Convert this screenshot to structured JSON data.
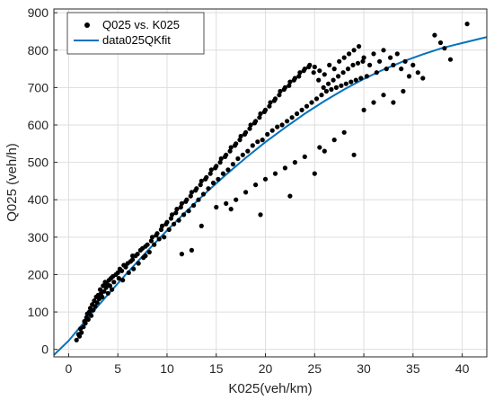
{
  "chart_data": {
    "type": "scatter",
    "xlabel": "K025(veh/km)",
    "ylabel": "Q025 (veh/h)",
    "xlim": [
      -1.5,
      42.5
    ],
    "ylim": [
      -20,
      910
    ],
    "x_ticks": [
      0,
      5,
      10,
      15,
      20,
      25,
      30,
      35,
      40
    ],
    "y_ticks": [
      0,
      100,
      200,
      300,
      400,
      500,
      600,
      700,
      800,
      900
    ],
    "grid": true,
    "legend_position": "top-left",
    "colors": {
      "points": "#000000",
      "fit": "#0072bd",
      "grid": "#dedede",
      "axis": "#262626"
    },
    "series": [
      {
        "name": "Q025 vs. K025",
        "kind": "scatter",
        "points": [
          [
            0.8,
            25
          ],
          [
            1.0,
            40
          ],
          [
            1.1,
            35
          ],
          [
            1.2,
            55
          ],
          [
            1.3,
            45
          ],
          [
            1.5,
            60
          ],
          [
            1.6,
            75
          ],
          [
            1.7,
            70
          ],
          [
            1.8,
            85
          ],
          [
            1.9,
            95
          ],
          [
            2.0,
            80
          ],
          [
            2.1,
            100
          ],
          [
            2.2,
            110
          ],
          [
            2.3,
            90
          ],
          [
            2.4,
            120
          ],
          [
            2.5,
            105
          ],
          [
            2.6,
            130
          ],
          [
            2.7,
            115
          ],
          [
            2.8,
            140
          ],
          [
            2.9,
            125
          ],
          [
            3.0,
            145
          ],
          [
            3.1,
            135
          ],
          [
            3.2,
            160
          ],
          [
            3.3,
            150
          ],
          [
            3.4,
            140
          ],
          [
            3.5,
            170
          ],
          [
            3.6,
            155
          ],
          [
            3.7,
            180
          ],
          [
            3.8,
            165
          ],
          [
            3.9,
            175
          ],
          [
            4.0,
            150
          ],
          [
            4.1,
            185
          ],
          [
            4.2,
            170
          ],
          [
            4.3,
            190
          ],
          [
            4.4,
            160
          ],
          [
            4.5,
            195
          ],
          [
            4.6,
            180
          ],
          [
            4.8,
            200
          ],
          [
            5.0,
            205
          ],
          [
            5.1,
            190
          ],
          [
            5.2,
            215
          ],
          [
            5.4,
            210
          ],
          [
            5.5,
            185
          ],
          [
            5.6,
            225
          ],
          [
            5.8,
            220
          ],
          [
            6.0,
            230
          ],
          [
            6.1,
            205
          ],
          [
            6.3,
            235
          ],
          [
            6.5,
            240
          ],
          [
            6.6,
            215
          ],
          [
            6.8,
            250
          ],
          [
            7.0,
            255
          ],
          [
            7.1,
            230
          ],
          [
            7.3,
            265
          ],
          [
            7.5,
            270
          ],
          [
            7.6,
            245
          ],
          [
            7.8,
            275
          ],
          [
            8.0,
            280
          ],
          [
            8.2,
            260
          ],
          [
            8.4,
            290
          ],
          [
            8.5,
            300
          ],
          [
            8.7,
            280
          ],
          [
            8.9,
            305
          ],
          [
            9.0,
            310
          ],
          [
            9.2,
            295
          ],
          [
            9.4,
            320
          ],
          [
            9.5,
            330
          ],
          [
            9.7,
            300
          ],
          [
            9.9,
            335
          ],
          [
            10.0,
            340
          ],
          [
            10.2,
            320
          ],
          [
            10.4,
            350
          ],
          [
            10.5,
            360
          ],
          [
            10.7,
            335
          ],
          [
            10.9,
            365
          ],
          [
            11.0,
            375
          ],
          [
            11.2,
            345
          ],
          [
            11.4,
            380
          ],
          [
            11.5,
            390
          ],
          [
            11.7,
            360
          ],
          [
            11.9,
            395
          ],
          [
            12.0,
            400
          ],
          [
            12.2,
            370
          ],
          [
            12.4,
            410
          ],
          [
            12.5,
            420
          ],
          [
            12.7,
            385
          ],
          [
            12.9,
            425
          ],
          [
            13.0,
            430
          ],
          [
            13.2,
            400
          ],
          [
            13.4,
            440
          ],
          [
            13.5,
            450
          ],
          [
            13.7,
            415
          ],
          [
            13.9,
            455
          ],
          [
            14.0,
            460
          ],
          [
            14.2,
            430
          ],
          [
            14.4,
            470
          ],
          [
            14.5,
            480
          ],
          [
            14.7,
            445
          ],
          [
            14.9,
            485
          ],
          [
            15.0,
            490
          ],
          [
            15.2,
            455
          ],
          [
            15.4,
            500
          ],
          [
            15.5,
            510
          ],
          [
            15.7,
            470
          ],
          [
            15.9,
            515
          ],
          [
            16.0,
            520
          ],
          [
            16.2,
            480
          ],
          [
            16.4,
            530
          ],
          [
            16.5,
            540
          ],
          [
            16.7,
            495
          ],
          [
            16.9,
            545
          ],
          [
            17.0,
            550
          ],
          [
            17.2,
            510
          ],
          [
            17.4,
            560
          ],
          [
            17.5,
            570
          ],
          [
            17.7,
            520
          ],
          [
            17.9,
            575
          ],
          [
            18.0,
            580
          ],
          [
            18.2,
            530
          ],
          [
            18.4,
            590
          ],
          [
            18.5,
            600
          ],
          [
            18.7,
            545
          ],
          [
            18.9,
            605
          ],
          [
            19.0,
            610
          ],
          [
            19.2,
            555
          ],
          [
            19.4,
            620
          ],
          [
            19.5,
            630
          ],
          [
            19.7,
            560
          ],
          [
            19.9,
            635
          ],
          [
            20.0,
            640
          ],
          [
            20.2,
            575
          ],
          [
            20.4,
            650
          ],
          [
            20.5,
            660
          ],
          [
            20.7,
            585
          ],
          [
            20.9,
            665
          ],
          [
            21.0,
            670
          ],
          [
            21.2,
            595
          ],
          [
            21.4,
            680
          ],
          [
            21.5,
            690
          ],
          [
            21.7,
            600
          ],
          [
            21.9,
            695
          ],
          [
            22.0,
            700
          ],
          [
            22.2,
            610
          ],
          [
            22.4,
            705
          ],
          [
            22.5,
            715
          ],
          [
            22.7,
            620
          ],
          [
            22.9,
            720
          ],
          [
            23.0,
            725
          ],
          [
            23.2,
            630
          ],
          [
            23.4,
            730
          ],
          [
            23.5,
            740
          ],
          [
            23.7,
            640
          ],
          [
            23.9,
            745
          ],
          [
            24.0,
            750
          ],
          [
            24.2,
            650
          ],
          [
            24.4,
            755
          ],
          [
            24.5,
            760
          ],
          [
            24.7,
            660
          ],
          [
            24.9,
            740
          ],
          [
            25.0,
            755
          ],
          [
            25.2,
            670
          ],
          [
            25.4,
            720
          ],
          [
            25.5,
            745
          ],
          [
            25.7,
            680
          ],
          [
            25.9,
            700
          ],
          [
            26.0,
            735
          ],
          [
            26.2,
            690
          ],
          [
            26.4,
            710
          ],
          [
            26.5,
            760
          ],
          [
            26.7,
            695
          ],
          [
            26.9,
            720
          ],
          [
            27.0,
            750
          ],
          [
            27.2,
            700
          ],
          [
            27.4,
            730
          ],
          [
            27.5,
            770
          ],
          [
            27.7,
            705
          ],
          [
            27.9,
            740
          ],
          [
            28.0,
            780
          ],
          [
            28.2,
            710
          ],
          [
            28.4,
            750
          ],
          [
            28.5,
            790
          ],
          [
            28.7,
            715
          ],
          [
            28.9,
            760
          ],
          [
            29.0,
            800
          ],
          [
            29.2,
            720
          ],
          [
            29.4,
            765
          ],
          [
            29.5,
            810
          ],
          [
            29.7,
            725
          ],
          [
            29.9,
            770
          ],
          [
            30.0,
            780
          ],
          [
            30.3,
            730
          ],
          [
            30.6,
            760
          ],
          [
            31.0,
            790
          ],
          [
            31.3,
            740
          ],
          [
            31.6,
            770
          ],
          [
            32.0,
            800
          ],
          [
            32.3,
            750
          ],
          [
            32.7,
            780
          ],
          [
            33.0,
            760
          ],
          [
            33.4,
            790
          ],
          [
            33.8,
            750
          ],
          [
            34.2,
            770
          ],
          [
            34.6,
            730
          ],
          [
            35.0,
            760
          ],
          [
            35.5,
            740
          ],
          [
            36.0,
            725
          ],
          [
            37.2,
            840
          ],
          [
            37.8,
            820
          ],
          [
            38.2,
            805
          ],
          [
            38.8,
            775
          ],
          [
            40.5,
            870
          ],
          [
            6.5,
            250
          ],
          [
            7.8,
            250
          ],
          [
            11.5,
            255
          ],
          [
            12.5,
            265
          ],
          [
            13.5,
            330
          ],
          [
            15.0,
            380
          ],
          [
            16.0,
            390
          ],
          [
            17.0,
            400
          ],
          [
            18.0,
            420
          ],
          [
            19.0,
            440
          ],
          [
            20.0,
            455
          ],
          [
            21.0,
            470
          ],
          [
            22.0,
            485
          ],
          [
            23.0,
            500
          ],
          [
            24.0,
            515
          ],
          [
            25.0,
            470
          ],
          [
            26.0,
            530
          ],
          [
            27.0,
            560
          ],
          [
            28.0,
            580
          ],
          [
            29.0,
            520
          ],
          [
            30.0,
            640
          ],
          [
            31.0,
            660
          ],
          [
            32.0,
            680
          ],
          [
            33.0,
            660
          ],
          [
            34.0,
            690
          ],
          [
            16.5,
            375
          ],
          [
            19.5,
            360
          ],
          [
            22.5,
            410
          ],
          [
            25.5,
            540
          ]
        ]
      },
      {
        "name": "data025QKfit",
        "kind": "line",
        "x": [
          -1.5,
          0,
          2,
          4,
          6,
          8,
          10,
          12,
          14,
          16,
          18,
          20,
          22,
          24,
          26,
          28,
          30,
          32,
          34,
          36,
          38,
          40,
          42.5
        ],
        "y": [
          -15,
          23,
          86,
          147,
          206,
          263,
          318,
          370,
          420,
          467,
          512,
          554,
          593,
          630,
          664,
          695,
          723,
          748,
          770,
          789,
          806,
          819,
          835
        ]
      }
    ]
  }
}
